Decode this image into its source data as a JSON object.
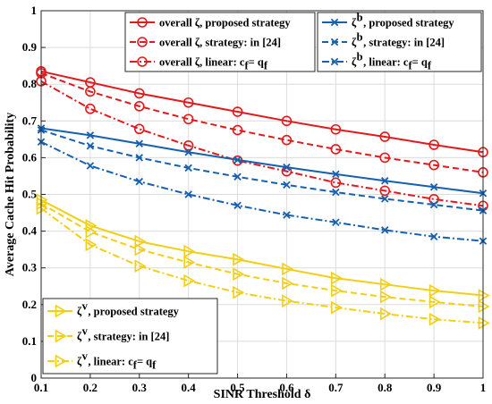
{
  "chart_data": {
    "type": "line",
    "xlabel": "SINR Threshold δ",
    "ylabel": "Average Cache Hit Probability",
    "xlim": [
      0.1,
      1
    ],
    "ylim": [
      0,
      1
    ],
    "xticks": [
      "0.1",
      "0.2",
      "0.3",
      "0.4",
      "0.5",
      "0.6",
      "0.7",
      "0.8",
      "0.9",
      "1"
    ],
    "yticks": [
      "0",
      "0.1",
      "0.2",
      "0.3",
      "0.4",
      "0.5",
      "0.6",
      "0.7",
      "0.8",
      "0.9",
      "1"
    ],
    "grid": true,
    "x": [
      0.1,
      0.2,
      0.3,
      0.4,
      0.5,
      0.6,
      0.7,
      0.8,
      0.9,
      1.0
    ],
    "series": [
      {
        "name": "overall ζ, proposed strategy",
        "color": "#e3191c",
        "dash": "solid",
        "marker": "circle",
        "legend": 0,
        "values": [
          0.835,
          0.805,
          0.775,
          0.75,
          0.725,
          0.7,
          0.677,
          0.657,
          0.635,
          0.615
        ]
      },
      {
        "name": "overall ζ, strategy: in [24]",
        "color": "#e3191c",
        "dash": "dashed",
        "marker": "circle",
        "legend": 0,
        "values": [
          0.83,
          0.78,
          0.74,
          0.705,
          0.675,
          0.648,
          0.623,
          0.6,
          0.58,
          0.56
        ]
      },
      {
        "name": "overall ζ, linear: c_f = q_f",
        "color": "#e3191c",
        "dash": "dashdot",
        "marker": "circle",
        "legend": 0,
        "values": [
          0.808,
          0.733,
          0.678,
          0.633,
          0.592,
          0.563,
          0.532,
          0.51,
          0.487,
          0.469
        ]
      },
      {
        "name": "ζ^b, proposed strategy",
        "color": "#1560b0",
        "dash": "solid",
        "marker": "x",
        "legend": 1,
        "values": [
          0.68,
          0.661,
          0.638,
          0.615,
          0.594,
          0.574,
          0.555,
          0.537,
          0.52,
          0.503
        ]
      },
      {
        "name": "ζ^b, strategy: in [24]",
        "color": "#1560b0",
        "dash": "dashed",
        "marker": "x",
        "legend": 1,
        "values": [
          0.675,
          0.632,
          0.6,
          0.572,
          0.548,
          0.526,
          0.506,
          0.488,
          0.472,
          0.456
        ]
      },
      {
        "name": "ζ^b, linear: c_f = q_f",
        "color": "#1560b0",
        "dash": "dashdot",
        "marker": "x",
        "legend": 1,
        "values": [
          0.643,
          0.578,
          0.535,
          0.5,
          0.47,
          0.444,
          0.424,
          0.403,
          0.385,
          0.373
        ]
      },
      {
        "name": "ζ^v, proposed strategy",
        "color": "#f2cf10",
        "dash": "solid",
        "marker": "triangle-right",
        "legend": 2,
        "values": [
          0.485,
          0.415,
          0.372,
          0.345,
          0.323,
          0.297,
          0.272,
          0.255,
          0.238,
          0.225
        ]
      },
      {
        "name": "ζ^v, strategy: in [24]",
        "color": "#f2cf10",
        "dash": "dashed",
        "marker": "triangle-right",
        "legend": 2,
        "values": [
          0.475,
          0.398,
          0.35,
          0.315,
          0.283,
          0.258,
          0.238,
          0.221,
          0.207,
          0.195
        ]
      },
      {
        "name": "ζ^v, linear: c_f = q_f",
        "color": "#f2cf10",
        "dash": "dashdot",
        "marker": "triangle-right",
        "legend": 2,
        "values": [
          0.462,
          0.363,
          0.305,
          0.265,
          0.233,
          0.21,
          0.192,
          0.175,
          0.16,
          0.15
        ]
      }
    ],
    "legends": [
      {
        "placement": "top-center",
        "entries": [
          {
            "prefix": "overall ζ",
            "sup": "",
            "text": ", proposed strategy",
            "sub": ""
          },
          {
            "prefix": "overall ζ",
            "sup": "",
            "text": ", strategy: in [24]",
            "sub": ""
          },
          {
            "prefix": "overall ζ",
            "sup": "",
            "text": ", linear: c",
            "sub": "f",
            "text2": " = q",
            "sub2": "f"
          }
        ]
      },
      {
        "placement": "top-right",
        "entries": [
          {
            "prefix": "ζ",
            "sup": "b",
            "text": ", proposed strategy",
            "sub": ""
          },
          {
            "prefix": "ζ",
            "sup": "b",
            "text": ", strategy: in [24]",
            "sub": ""
          },
          {
            "prefix": "ζ",
            "sup": "b",
            "text": ", linear: c",
            "sub": "f",
            "text2": " = q",
            "sub2": "f"
          }
        ]
      },
      {
        "placement": "bottom-left",
        "entries": [
          {
            "prefix": "ζ",
            "sup": "v",
            "text": ", proposed strategy",
            "sub": ""
          },
          {
            "prefix": "ζ",
            "sup": "v",
            "text": ", strategy: in [24]",
            "sub": ""
          },
          {
            "prefix": "ζ",
            "sup": "v",
            "text": ", linear: c",
            "sub": "f",
            "text2": " = q",
            "sub2": "f"
          }
        ]
      }
    ]
  }
}
